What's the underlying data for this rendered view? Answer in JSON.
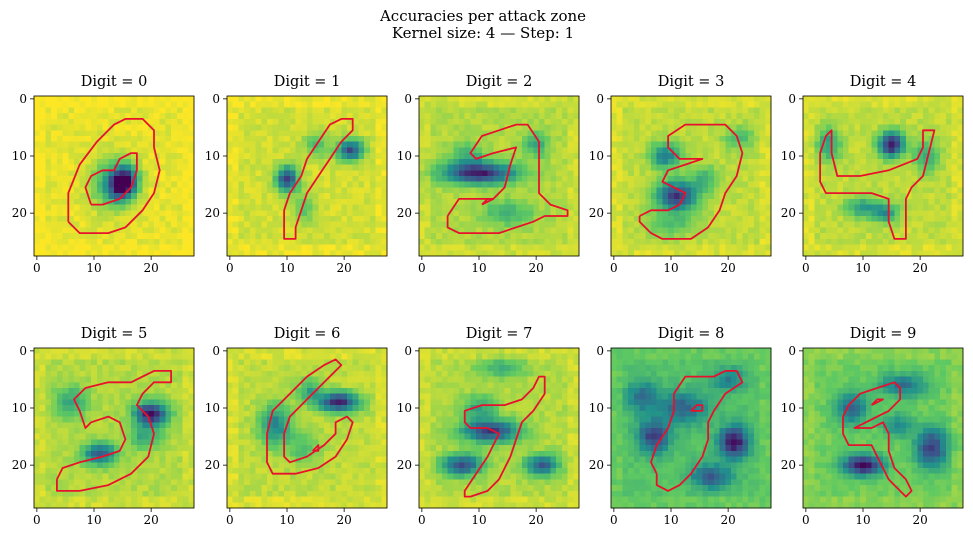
{
  "chart_data": {
    "type": "heatmap",
    "title": "Accuracies per attack zone",
    "subtitle": "Kernel size: 4 — Step: 1",
    "grid": false,
    "overlay": "red contour of the digit shape",
    "colormap": [
      "#440154",
      "#3b528b",
      "#21918c",
      "#5ec962",
      "#fde725"
    ],
    "overlay_color": "#e8112d",
    "image_size": [
      28,
      28
    ],
    "x_ticks": [
      "0",
      "10",
      "20"
    ],
    "y_ticks": [
      "0",
      "10",
      "20"
    ],
    "panels": [
      {
        "digit": "0",
        "title": "Digit = 0"
      },
      {
        "digit": "1",
        "title": "Digit = 1"
      },
      {
        "digit": "2",
        "title": "Digit = 2"
      },
      {
        "digit": "3",
        "title": "Digit = 3"
      },
      {
        "digit": "4",
        "title": "Digit = 4"
      },
      {
        "digit": "5",
        "title": "Digit = 5"
      },
      {
        "digit": "6",
        "title": "Digit = 6"
      },
      {
        "digit": "7",
        "title": "Digit = 7"
      },
      {
        "digit": "8",
        "title": "Digit = 8"
      },
      {
        "digit": "9",
        "title": "Digit = 9"
      }
    ]
  }
}
